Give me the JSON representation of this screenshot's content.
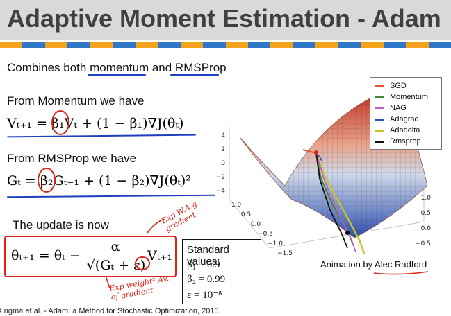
{
  "title": "Adaptive Moment Estimation - Adam",
  "colors": {
    "stripe": [
      "#f4a21c",
      "#2f78c9",
      "#f4a21c",
      "#2f78c9",
      "#f4a21c",
      "#2f78c9",
      "#f4a21c",
      "#2f78c9",
      "#f4a21c",
      "#2f78c9",
      "#f4a21c",
      "#2f78c9",
      "#f4a21c",
      "#2f78c9",
      "#f4a21c",
      "#2f78c9",
      "#f4a21c",
      "#2f78c9",
      "#f4a21c",
      "#2f78c9"
    ]
  },
  "intro": {
    "prefix": "Combines both ",
    "momentum": "momentum",
    "and": " and ",
    "rmsprop": "RMSProp"
  },
  "momentum_label": "From Momentum we have",
  "rmsprop_label": "From RMSProp we have",
  "update_label": "The update is now",
  "equations": {
    "momentum": "Vₜ₊₁ = β₁Vₜ + (1 − β₁)∇J(θₜ)",
    "rmsprop": "Gₜ = β₂Gₜ₋₁ + (1 − β₂)∇J(θₜ)²",
    "update_lhs": "θₜ₊₁ = θₜ −",
    "update_num": "α",
    "update_den": "√(Gₜ + ε)",
    "update_rhs": "Vₜ₊₁"
  },
  "standard_values": {
    "header": "Standard values:",
    "beta1": "β₁ = 0.9",
    "beta2": "β₂ = 0.99",
    "epsilon": "ε = 10⁻⁸"
  },
  "annotations": {
    "top": "Exp.W.A.g gradient",
    "bottom": "Exp weight² Av. of gradient"
  },
  "legend": [
    {
      "label": "SGD",
      "color": "#e8552a"
    },
    {
      "label": "Momentum",
      "color": "#3a8a3a"
    },
    {
      "label": "NAG",
      "color": "#c45ac4"
    },
    {
      "label": "Adagrad",
      "color": "#2a4fb8"
    },
    {
      "label": "Adadelta",
      "color": "#c9c22a"
    },
    {
      "label": "Rmsprop",
      "color": "#111111"
    }
  ],
  "plot_axes": {
    "z_ticks": [
      "4",
      "2",
      "0",
      "−2",
      "−4"
    ],
    "left_ticks": [
      "1.0",
      "0.5",
      "0.0",
      "−0.5",
      "−1.0",
      "−1.5"
    ],
    "right_ticks": [
      "1.0",
      "0.5",
      "0.0",
      "−0.5"
    ]
  },
  "caption": {
    "prefix": "Animation by ",
    "author": "Alec Radford"
  },
  "footer": "Kingma et al. - Adam: a Method for Stochastic Optimization, 2015"
}
